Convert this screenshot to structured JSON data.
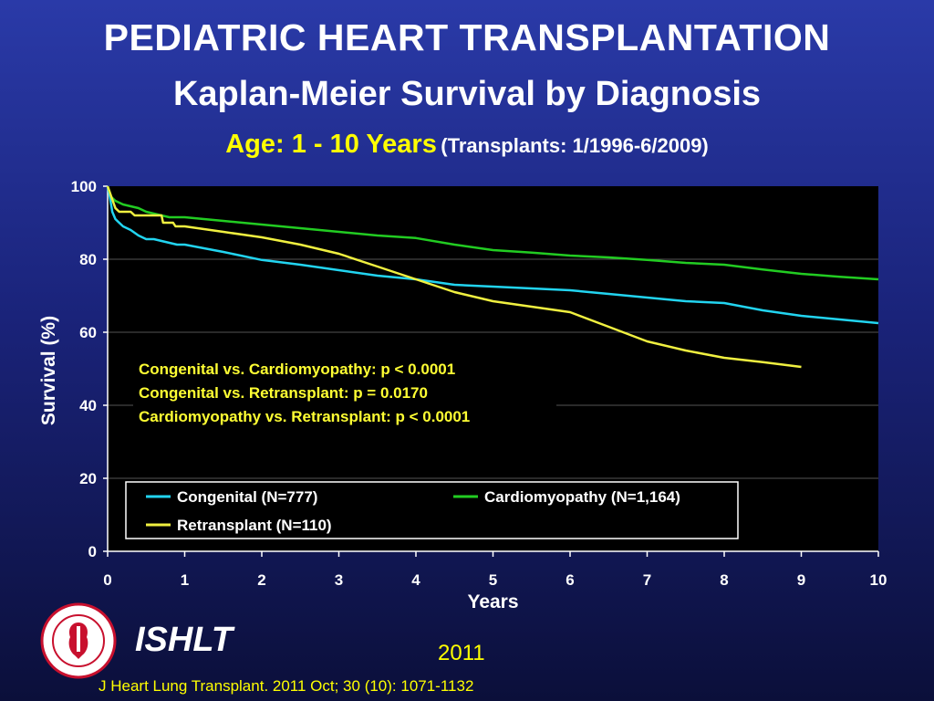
{
  "header": {
    "title": "PEDIATRIC HEART TRANSPLANTATION",
    "subtitle": "Kaplan-Meier Survival by Diagnosis",
    "age_label": "Age: 1 - 10 Years",
    "transplant_period": "(Transplants: 1/1996-6/2009)"
  },
  "footer": {
    "org": "ISHLT",
    "year": "2011",
    "citation": "J Heart Lung Transplant. 2011 Oct; 30 (10): 1071-1132",
    "logo_icon": "ishlt-society-seal-icon"
  },
  "colors": {
    "background_top": "#2a3aa8",
    "background_bottom": "#0b0f3a",
    "plot_background": "#000000",
    "congenital": "#22d4f0",
    "cardiomyopathy": "#22cc22",
    "retransplant": "#f0f040",
    "annotation": "#ffff33"
  },
  "chart_data": {
    "type": "line",
    "xlabel": "Years",
    "ylabel": "Survival (%)",
    "xlim": [
      0,
      10
    ],
    "ylim": [
      0,
      100
    ],
    "xticks": [
      "0",
      "1",
      "2",
      "3",
      "4",
      "5",
      "6",
      "7",
      "8",
      "9",
      "10"
    ],
    "yticks": [
      "0",
      "20",
      "40",
      "60",
      "80",
      "100"
    ],
    "grid": "horizontal",
    "legend_position": "bottom-inside",
    "annotations": [
      "Congenital vs. Cardiomyopathy: p < 0.0001",
      "Congenital vs. Retransplant: p = 0.0170",
      "Cardiomyopathy vs. Retransplant: p < 0.0001"
    ],
    "series": [
      {
        "name": "Congenital (N=777)",
        "color": "#22d4f0",
        "points": [
          [
            0,
            100
          ],
          [
            0.03,
            97
          ],
          [
            0.06,
            93
          ],
          [
            0.1,
            91
          ],
          [
            0.2,
            89
          ],
          [
            0.3,
            88
          ],
          [
            0.4,
            86.5
          ],
          [
            0.5,
            85.5
          ],
          [
            0.6,
            85.5
          ],
          [
            0.7,
            85
          ],
          [
            0.8,
            84.5
          ],
          [
            0.9,
            84
          ],
          [
            1,
            84
          ],
          [
            1.5,
            82
          ],
          [
            2,
            79.8
          ],
          [
            2.5,
            78.5
          ],
          [
            3,
            77
          ],
          [
            3.5,
            75.5
          ],
          [
            4,
            74.5
          ],
          [
            4.5,
            73
          ],
          [
            5,
            72.5
          ],
          [
            5.5,
            72
          ],
          [
            6,
            71.5
          ],
          [
            6.5,
            70.5
          ],
          [
            7,
            69.5
          ],
          [
            7.5,
            68.5
          ],
          [
            8,
            68
          ],
          [
            8.5,
            66
          ],
          [
            9,
            64.5
          ],
          [
            9.5,
            63.5
          ],
          [
            10,
            62.5
          ]
        ]
      },
      {
        "name": "Cardiomyopathy (N=1,164)",
        "color": "#22cc22",
        "points": [
          [
            0,
            100
          ],
          [
            0.05,
            97
          ],
          [
            0.1,
            96
          ],
          [
            0.2,
            95
          ],
          [
            0.3,
            94.5
          ],
          [
            0.4,
            94
          ],
          [
            0.5,
            93
          ],
          [
            0.6,
            92.5
          ],
          [
            0.7,
            92
          ],
          [
            0.8,
            91.5
          ],
          [
            0.9,
            91.5
          ],
          [
            1,
            91.5
          ],
          [
            1.5,
            90.5
          ],
          [
            2,
            89.5
          ],
          [
            2.5,
            88.5
          ],
          [
            3,
            87.5
          ],
          [
            3.5,
            86.5
          ],
          [
            4,
            85.8
          ],
          [
            4.5,
            84
          ],
          [
            5,
            82.5
          ],
          [
            5.5,
            81.8
          ],
          [
            6,
            81
          ],
          [
            6.5,
            80.5
          ],
          [
            7,
            79.8
          ],
          [
            7.5,
            79
          ],
          [
            8,
            78.5
          ],
          [
            8.5,
            77.2
          ],
          [
            9,
            76
          ],
          [
            9.5,
            75.2
          ],
          [
            10,
            74.5
          ]
        ]
      },
      {
        "name": "Retransplant (N=110)",
        "color": "#f0f040",
        "points": [
          [
            0,
            100
          ],
          [
            0.05,
            97
          ],
          [
            0.1,
            94
          ],
          [
            0.15,
            93
          ],
          [
            0.25,
            93
          ],
          [
            0.3,
            93
          ],
          [
            0.35,
            92
          ],
          [
            0.5,
            92
          ],
          [
            0.7,
            92
          ],
          [
            0.72,
            90
          ],
          [
            0.85,
            90
          ],
          [
            0.88,
            89
          ],
          [
            1,
            89
          ],
          [
            1.5,
            87.5
          ],
          [
            2,
            86
          ],
          [
            2.5,
            84
          ],
          [
            3,
            81.5
          ],
          [
            3.5,
            78
          ],
          [
            4,
            74.5
          ],
          [
            4.5,
            71
          ],
          [
            5,
            68.5
          ],
          [
            5.5,
            67
          ],
          [
            6,
            65.5
          ],
          [
            6.5,
            61.5
          ],
          [
            7,
            57.5
          ],
          [
            7.5,
            55
          ],
          [
            8,
            53
          ],
          [
            8.5,
            51.8
          ],
          [
            9,
            50.5
          ]
        ]
      }
    ]
  }
}
